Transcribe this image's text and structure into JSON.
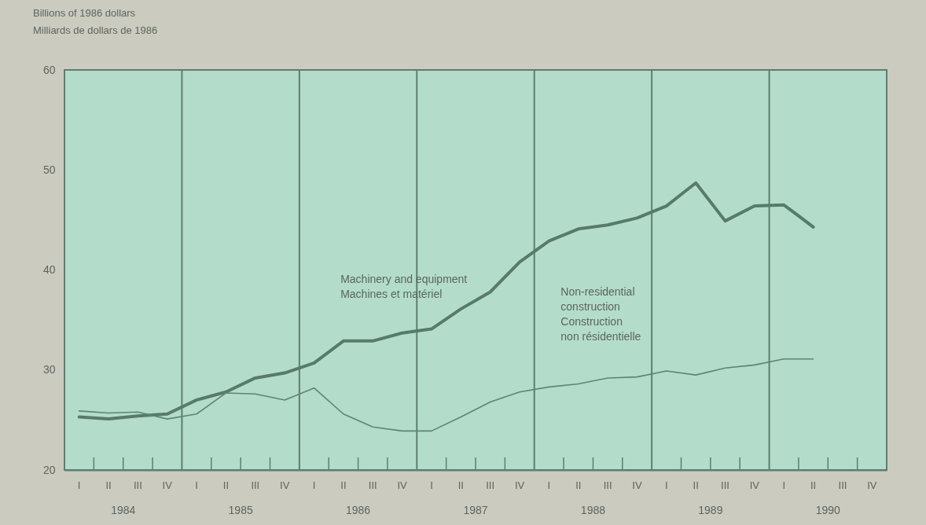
{
  "chart_data": {
    "type": "line",
    "ylabel": "Billions of 1986 dollars\nMilliards de dollars de 1986",
    "categories": [
      "I",
      "II",
      "III",
      "IV",
      "I",
      "II",
      "III",
      "IV",
      "I",
      "II",
      "III",
      "IV",
      "I",
      "II",
      "III",
      "IV",
      "I",
      "II",
      "III",
      "IV",
      "I",
      "II",
      "III",
      "IV",
      "I",
      "II",
      "III",
      "IV"
    ],
    "annotations": [
      "1984",
      "1985",
      "1986",
      "1987",
      "1988",
      "1989",
      "1990"
    ],
    "series": [
      {
        "name": "Machinery and equipment\nMachines et matériel",
        "color": "#587a6c",
        "values": [
          25.3,
          25.1,
          25.4,
          25.6,
          27.0,
          27.8,
          29.2,
          29.7,
          30.7,
          32.9,
          32.9,
          33.7,
          34.1,
          36.1,
          37.8,
          40.8,
          42.9,
          44.1,
          44.5,
          45.2,
          46.4,
          48.7,
          44.9,
          46.4,
          46.5,
          44.3,
          null,
          null
        ]
      },
      {
        "name": "Non-residential\nconstruction\nConstruction\nnon résidentielle",
        "color": "#5f8474",
        "values": [
          25.9,
          25.7,
          25.8,
          25.1,
          25.6,
          27.7,
          27.6,
          27.0,
          28.2,
          25.6,
          24.3,
          23.9,
          23.9,
          25.3,
          26.8,
          27.8,
          28.3,
          28.6,
          29.2,
          29.3,
          29.9,
          29.5,
          30.2,
          30.5,
          31.1,
          31.1,
          null,
          null
        ]
      }
    ],
    "ylim": [
      20,
      60
    ],
    "yticks": [
      20,
      30,
      40,
      50,
      60
    ],
    "grid": true
  }
}
